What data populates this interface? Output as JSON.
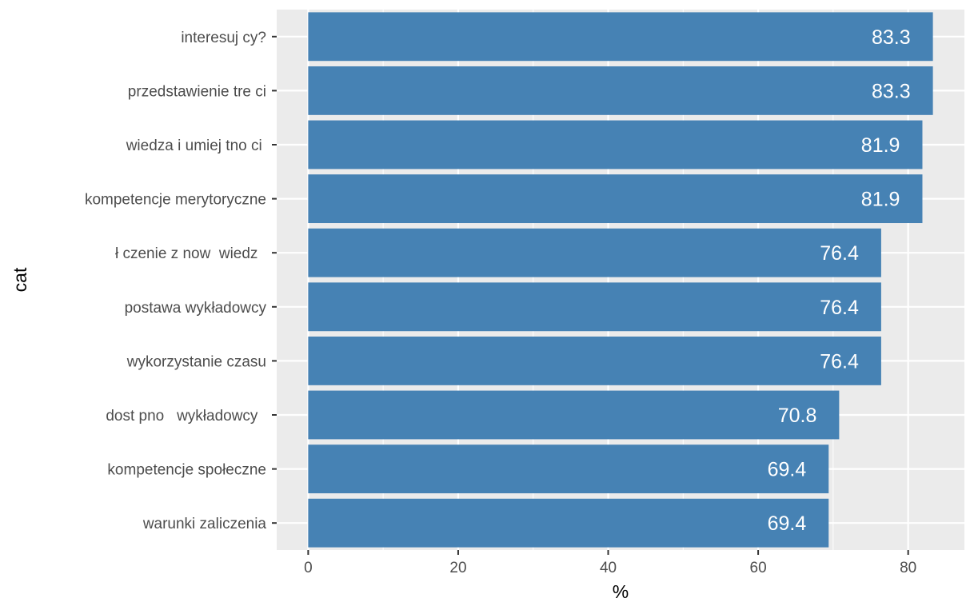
{
  "chart_data": {
    "type": "bar",
    "orientation": "horizontal",
    "categories": [
      "interesuj cy?",
      "przedstawienie tre ci",
      "wiedza i umiej tno ci ",
      "kompetencje merytoryczne",
      "ł czenie z now  wiedz  ",
      "postawa wykładowcy",
      "wykorzystanie czasu",
      "dost pno   wykładowcy  ",
      "kompetencje społeczne",
      "warunki zaliczenia"
    ],
    "values": [
      83.3,
      83.3,
      81.9,
      81.9,
      76.4,
      76.4,
      76.4,
      70.8,
      69.4,
      69.4
    ],
    "value_labels": [
      "83.3",
      "83.3",
      "81.9",
      "81.9",
      "76.4",
      "76.4",
      "76.4",
      "70.8",
      "69.4",
      "69.4"
    ],
    "xlabel": "%",
    "ylabel": "cat",
    "xlim": [
      -4.2,
      87.5
    ],
    "xticks": [
      0,
      20,
      40,
      60,
      80
    ],
    "xtick_labels": [
      "0",
      "20",
      "40",
      "60",
      "80"
    ],
    "grid": true,
    "colors": {
      "bar": "#4682b4",
      "panel_background": "#ebebeb",
      "grid": "#ffffff",
      "label_text": "#ffffff"
    }
  }
}
